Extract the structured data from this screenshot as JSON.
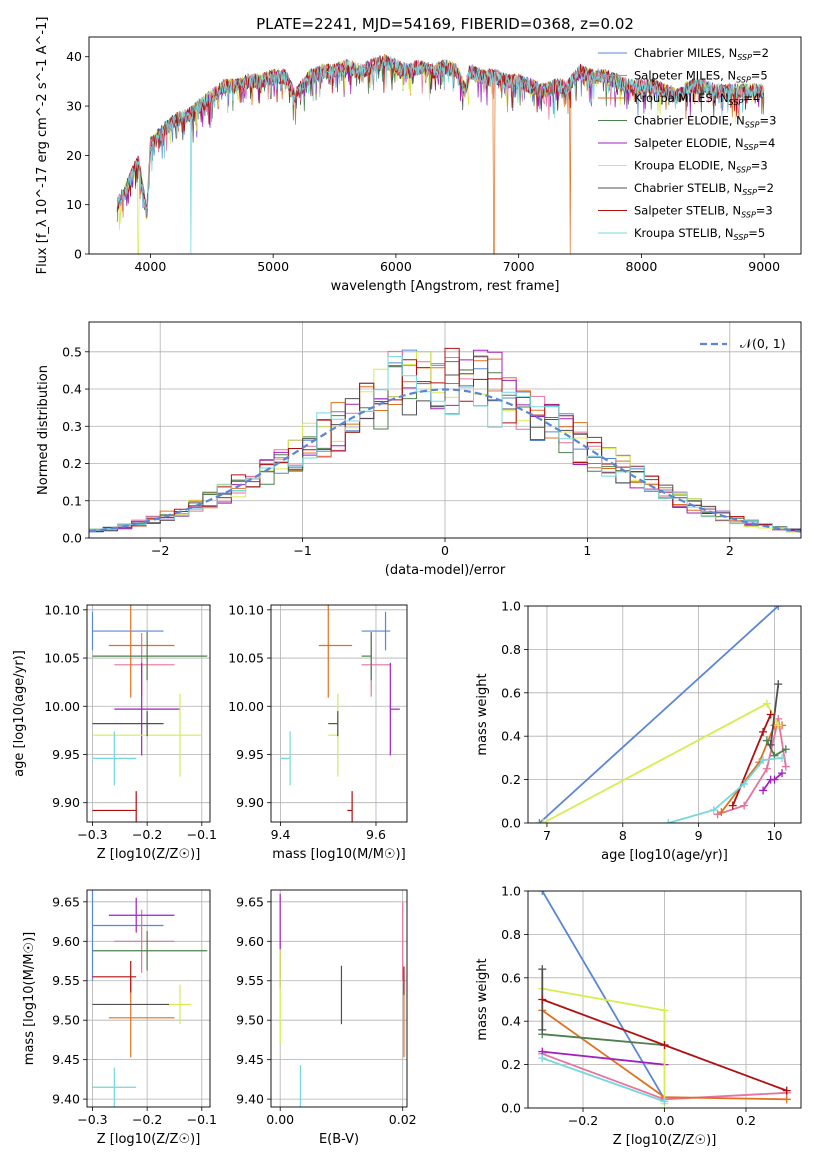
{
  "figure_title": "PLATE=2241, MJD=54169, FIBERID=0368, z=0.02",
  "models": [
    {
      "name": "Chabrier MILES",
      "nssp": "2",
      "color": "#5b86d6"
    },
    {
      "name": "Salpeter MILES",
      "nssp": "5",
      "color": "#e6739f"
    },
    {
      "name": "Kroupa MILES",
      "nssp": "4",
      "color": "#e07020"
    },
    {
      "name": "Chabrier ELODIE",
      "nssp": "3",
      "color": "#4f7f4f"
    },
    {
      "name": "Salpeter ELODIE",
      "nssp": "4",
      "color": "#a020c0"
    },
    {
      "name": "Kroupa ELODIE",
      "nssp": "3",
      "color": "#d8ec50"
    },
    {
      "name": "Chabrier STELIB",
      "nssp": "2",
      "color": "#505050"
    },
    {
      "name": "Salpeter STELIB",
      "nssp": "3",
      "color": "#b01010"
    },
    {
      "name": "Kroupa STELIB",
      "nssp": "5",
      "color": "#74d8dc"
    }
  ],
  "chart_data": [
    {
      "id": "spectrum",
      "type": "line",
      "xlabel": "wavelength [Angstrom, rest frame]",
      "ylabel": "Flux [f_λ 10^-17 erg cm^-2 s^-1 A^-1]",
      "xlim": [
        3500,
        9300
      ],
      "ylim": [
        0,
        44
      ],
      "xticks": [
        4000,
        5000,
        6000,
        7000,
        8000,
        9000
      ],
      "yticks": [
        0,
        10,
        20,
        30,
        40
      ],
      "grid": false,
      "legend": "top-right",
      "x": [
        3730,
        3800,
        3900,
        3970,
        4000,
        4100,
        4200,
        4300,
        4400,
        4500,
        4600,
        4700,
        4800,
        4900,
        5000,
        5100,
        5175,
        5300,
        5400,
        5500,
        5600,
        5700,
        5800,
        5900,
        6000,
        6100,
        6200,
        6300,
        6400,
        6500,
        6563,
        6600,
        6700,
        6800,
        6900,
        7000,
        7100,
        7200,
        7300,
        7400,
        7500,
        7600,
        7700,
        7800,
        7900,
        8000,
        8100,
        8200,
        8300,
        8400,
        8500,
        8600,
        8700,
        8800,
        8900,
        9000
      ],
      "flux": [
        10,
        13,
        19,
        8,
        22,
        25,
        27,
        28,
        30,
        32,
        34,
        34,
        35,
        35,
        36,
        36,
        32,
        36,
        37,
        37,
        38,
        37,
        38,
        39,
        38,
        37,
        38,
        37,
        38,
        37,
        33,
        37,
        36,
        36,
        35,
        35,
        34,
        33,
        34,
        34,
        37,
        36,
        36,
        35,
        34,
        34,
        34,
        33,
        32,
        34,
        34,
        33,
        33,
        33,
        33,
        33
      ],
      "dropouts": [
        {
          "x": 3900,
          "model": "Kroupa ELODIE"
        },
        {
          "x": 4330,
          "model": "Kroupa STELIB"
        },
        {
          "x": 6800,
          "model": "Kroupa MILES"
        },
        {
          "x": 7420,
          "model": "Kroupa MILES"
        }
      ]
    },
    {
      "id": "residuals",
      "type": "histogram",
      "xlabel": "(data-model)/error",
      "ylabel": "Normed distribution",
      "xlim": [
        -2.5,
        2.5
      ],
      "ylim": [
        0,
        0.58
      ],
      "xticks": [
        -2,
        -1,
        0,
        1,
        2
      ],
      "yticks": [
        0.0,
        0.1,
        0.2,
        0.3,
        0.4,
        0.5
      ],
      "grid": true,
      "legend": "top-right",
      "reference_curve": {
        "label": "𝒩(0, 1)",
        "mean": 0,
        "sigma": 1
      },
      "bin_width": 0.1,
      "bin_start": -2.5
    },
    {
      "id": "age_vs_Z",
      "type": "errorbar",
      "xlabel": "Z [log10(Z/Z☉)]",
      "ylabel": "age [log10(age/yr)]",
      "xlim": [
        -0.31,
        -0.085
      ],
      "ylim": [
        9.88,
        10.105
      ],
      "xticks": [
        -0.3,
        -0.2,
        -0.1
      ],
      "yticks": [
        9.9,
        9.95,
        10.0,
        10.05,
        10.1
      ],
      "grid": true,
      "points": [
        {
          "model": "Chabrier MILES",
          "x": -0.3,
          "xerr_low": 0.0,
          "xerr_high": 0.13,
          "y": 10.078,
          "yerr": 0.02
        },
        {
          "model": "Salpeter MILES",
          "x": -0.21,
          "xerr_low": 0.05,
          "xerr_high": 0.06,
          "y": 10.043,
          "yerr": 0.033
        },
        {
          "model": "Kroupa MILES",
          "x": -0.23,
          "xerr_low": 0.04,
          "xerr_high": 0.08,
          "y": 10.063,
          "yerr": 0.054
        },
        {
          "model": "Chabrier ELODIE",
          "x": -0.2,
          "xerr_low": 0.1,
          "xerr_high": 0.11,
          "y": 10.052,
          "yerr": 0.025
        },
        {
          "model": "Salpeter ELODIE",
          "x": -0.21,
          "xerr_low": 0.05,
          "xerr_high": 0.07,
          "y": 9.997,
          "yerr": 0.048
        },
        {
          "model": "Kroupa ELODIE",
          "x": -0.14,
          "xerr_low": 0.16,
          "xerr_high": 0.04,
          "y": 9.97,
          "yerr": 0.043
        },
        {
          "model": "Chabrier STELIB",
          "x": -0.2,
          "xerr_low": 0.1,
          "xerr_high": 0.03,
          "y": 9.982,
          "yerr": 0.013
        },
        {
          "model": "Salpeter STELIB",
          "x": -0.22,
          "xerr_low": 0.08,
          "xerr_high": 0.0,
          "y": 9.892,
          "yerr": 0.02
        },
        {
          "model": "Kroupa STELIB",
          "x": -0.26,
          "xerr_low": 0.04,
          "xerr_high": 0.04,
          "y": 9.946,
          "yerr": 0.028
        }
      ]
    },
    {
      "id": "age_vs_mass",
      "type": "errorbar",
      "xlabel": "mass [log10(M/M☉)]",
      "ylabel": "",
      "xlim": [
        9.38,
        9.665
      ],
      "ylim": [
        9.88,
        10.105
      ],
      "xticks": [
        9.4,
        9.6
      ],
      "yticks": [
        9.9,
        9.95,
        10.0,
        10.05,
        10.1
      ],
      "grid": true,
      "points": [
        {
          "model": "Chabrier MILES",
          "x": 9.62,
          "xerr_low": 0.05,
          "xerr_high": 0.01,
          "y": 10.078,
          "yerr": 0.02
        },
        {
          "model": "Salpeter MILES",
          "x": 9.59,
          "xerr_low": 0.02,
          "xerr_high": 0.04,
          "y": 10.043,
          "yerr": 0.033
        },
        {
          "model": "Kroupa MILES",
          "x": 9.5,
          "xerr_low": 0.02,
          "xerr_high": 0.05,
          "y": 10.063,
          "yerr": 0.054
        },
        {
          "model": "Chabrier ELODIE",
          "x": 9.59,
          "xerr_low": 0.02,
          "xerr_high": 0.0,
          "y": 10.052,
          "yerr": 0.025
        },
        {
          "model": "Salpeter ELODIE",
          "x": 9.63,
          "xerr_low": 0.0,
          "xerr_high": 0.02,
          "y": 9.997,
          "yerr": 0.048
        },
        {
          "model": "Kroupa ELODIE",
          "x": 9.52,
          "xerr_low": 0.02,
          "xerr_high": 0.0,
          "y": 9.97,
          "yerr": 0.043
        },
        {
          "model": "Chabrier STELIB",
          "x": 9.52,
          "xerr_low": 0.02,
          "xerr_high": 0.0,
          "y": 9.982,
          "yerr": 0.013
        },
        {
          "model": "Salpeter STELIB",
          "x": 9.55,
          "xerr_low": 0.01,
          "xerr_high": 0.0,
          "y": 9.892,
          "yerr": 0.02
        },
        {
          "model": "Kroupa STELIB",
          "x": 9.42,
          "xerr_low": 0.02,
          "xerr_high": 0.0,
          "y": 9.946,
          "yerr": 0.028
        }
      ]
    },
    {
      "id": "weight_vs_age",
      "type": "line",
      "xlabel": "age [log10(age/yr)]",
      "ylabel": "mass weight",
      "xlim": [
        6.75,
        10.35
      ],
      "ylim": [
        0.0,
        1.0
      ],
      "xticks": [
        7,
        8,
        9,
        10
      ],
      "yticks": [
        0.0,
        0.2,
        0.4,
        0.6,
        0.8,
        1.0
      ],
      "grid": true,
      "series": [
        {
          "model": "Chabrier MILES",
          "points": [
            [
              6.9,
              0.0
            ],
            [
              10.05,
              1.0
            ]
          ]
        },
        {
          "model": "Salpeter MILES",
          "points": [
            [
              9.25,
              0.04
            ],
            [
              9.6,
              0.08
            ],
            [
              9.9,
              0.25
            ],
            [
              10.05,
              0.48
            ],
            [
              10.15,
              0.26
            ]
          ]
        },
        {
          "model": "Kroupa MILES",
          "points": [
            [
              9.3,
              0.05
            ],
            [
              9.8,
              0.28
            ],
            [
              10.0,
              0.45
            ],
            [
              10.1,
              0.45
            ]
          ]
        },
        {
          "model": "Chabrier ELODIE",
          "points": [
            [
              9.9,
              0.38
            ],
            [
              10.0,
              0.31
            ],
            [
              10.15,
              0.34
            ]
          ]
        },
        {
          "model": "Salpeter ELODIE",
          "points": [
            [
              9.85,
              0.15
            ],
            [
              9.95,
              0.2
            ],
            [
              10.0,
              0.2
            ],
            [
              10.1,
              0.23
            ]
          ]
        },
        {
          "model": "Kroupa ELODIE",
          "points": [
            [
              6.95,
              0.0
            ],
            [
              9.9,
              0.55
            ],
            [
              10.05,
              0.45
            ]
          ]
        },
        {
          "model": "Chabrier STELIB",
          "points": [
            [
              9.95,
              0.36
            ],
            [
              10.05,
              0.64
            ]
          ]
        },
        {
          "model": "Salpeter STELIB",
          "points": [
            [
              9.45,
              0.08
            ],
            [
              9.85,
              0.42
            ],
            [
              9.95,
              0.5
            ]
          ]
        },
        {
          "model": "Kroupa STELIB",
          "points": [
            [
              8.6,
              0.0
            ],
            [
              9.2,
              0.06
            ],
            [
              9.6,
              0.18
            ],
            [
              9.85,
              0.29
            ],
            [
              10.1,
              0.3
            ]
          ]
        }
      ]
    },
    {
      "id": "mass_vs_Z",
      "type": "errorbar",
      "xlabel": "Z [log10(Z/Z☉)]",
      "ylabel": "mass [log10(M/M☉)]",
      "xlim": [
        -0.31,
        -0.085
      ],
      "ylim": [
        9.39,
        9.665
      ],
      "xticks": [
        -0.3,
        -0.2,
        -0.1
      ],
      "yticks": [
        9.4,
        9.45,
        9.5,
        9.55,
        9.6,
        9.65
      ],
      "grid": true,
      "points": [
        {
          "model": "Chabrier MILES",
          "x": -0.3,
          "xerr_low": 0.0,
          "xerr_high": 0.13,
          "y": 9.62,
          "yerr": 0.07
        },
        {
          "model": "Salpeter MILES",
          "x": -0.21,
          "xerr_low": 0.05,
          "xerr_high": 0.06,
          "y": 9.6,
          "yerr": 0.04
        },
        {
          "model": "Kroupa MILES",
          "x": -0.23,
          "xerr_low": 0.04,
          "xerr_high": 0.08,
          "y": 9.503,
          "yerr": 0.05
        },
        {
          "model": "Chabrier ELODIE",
          "x": -0.2,
          "xerr_low": 0.1,
          "xerr_high": 0.11,
          "y": 9.588,
          "yerr": 0.025
        },
        {
          "model": "Salpeter ELODIE",
          "x": -0.22,
          "xerr_low": 0.05,
          "xerr_high": 0.07,
          "y": 9.633,
          "yerr": 0.022
        },
        {
          "model": "Kroupa ELODIE",
          "x": -0.14,
          "xerr_low": 0.03,
          "xerr_high": 0.02,
          "y": 9.52,
          "yerr": 0.025
        },
        {
          "model": "Chabrier STELIB",
          "x": -0.23,
          "xerr_low": 0.07,
          "xerr_high": 0.07,
          "y": 9.52,
          "yerr": 0.0
        },
        {
          "model": "Salpeter STELIB",
          "x": -0.23,
          "xerr_low": 0.07,
          "xerr_high": 0.01,
          "y": 9.555,
          "yerr": 0.02
        },
        {
          "model": "Kroupa STELIB",
          "x": -0.26,
          "xerr_low": 0.04,
          "xerr_high": 0.04,
          "y": 9.415,
          "yerr": 0.025
        }
      ]
    },
    {
      "id": "mass_vs_ebv",
      "type": "errorbar",
      "xlabel": "E(B-V)",
      "ylabel": "",
      "xlim": [
        -0.0015,
        0.0207
      ],
      "ylim": [
        9.39,
        9.665
      ],
      "xticks": [
        0.0,
        0.02
      ],
      "yticks": [
        9.4,
        9.45,
        9.5,
        9.55,
        9.6,
        9.65
      ],
      "grid": true,
      "points": [
        {
          "model": "Salpeter ELODIE",
          "x": 0.0,
          "y": 9.6,
          "yerr": 0.06
        },
        {
          "model": "Kroupa ELODIE",
          "x": 0.0,
          "y": 9.53,
          "yerr": 0.06
        },
        {
          "model": "Chabrier STELIB",
          "x": 0.01,
          "y": 9.532,
          "yerr": 0.037
        },
        {
          "model": "Kroupa STELIB",
          "x": 0.0033,
          "y": 9.415,
          "yerr": 0.028
        },
        {
          "model": "Salpeter MILES",
          "x": 0.02,
          "y": 9.6,
          "yerr": 0.05
        },
        {
          "model": "Kroupa MILES",
          "x": 0.0202,
          "y": 9.503,
          "yerr": 0.05
        },
        {
          "model": "Salpeter STELIB",
          "x": 0.0202,
          "y": 9.55,
          "yerr": 0.018
        }
      ]
    },
    {
      "id": "weight_vs_Z",
      "type": "line",
      "xlabel": "Z [log10(Z/Z☉)]",
      "ylabel": "mass weight",
      "xlim": [
        -0.335,
        0.335
      ],
      "ylim": [
        0.0,
        1.0
      ],
      "xticks": [
        -0.2,
        0.0,
        0.2
      ],
      "yticks": [
        0.0,
        0.2,
        0.4,
        0.6,
        0.8,
        1.0
      ],
      "grid": true,
      "series": [
        {
          "model": "Chabrier MILES",
          "points": [
            [
              -0.3,
              1.0
            ],
            [
              0.0,
              0.04
            ]
          ]
        },
        {
          "model": "Salpeter MILES",
          "points": [
            [
              -0.3,
              0.25
            ],
            [
              0.0,
              0.04
            ],
            [
              0.3,
              0.07
            ]
          ]
        },
        {
          "model": "Kroupa MILES",
          "points": [
            [
              -0.3,
              0.45
            ],
            [
              0.0,
              0.05
            ],
            [
              0.3,
              0.04
            ]
          ]
        },
        {
          "model": "Chabrier ELODIE",
          "points": [
            [
              -0.3,
              0.34
            ],
            [
              0.0,
              0.29
            ]
          ]
        },
        {
          "model": "Salpeter ELODIE",
          "points": [
            [
              -0.3,
              0.26
            ],
            [
              0.0,
              0.2
            ]
          ]
        },
        {
          "model": "Kroupa ELODIE",
          "points": [
            [
              -0.3,
              0.55
            ],
            [
              0.0,
              0.45
            ],
            [
              0.0,
              0.02
            ]
          ]
        },
        {
          "model": "Chabrier STELIB",
          "points": [
            [
              -0.3,
              0.64
            ],
            [
              -0.3,
              0.36
            ]
          ]
        },
        {
          "model": "Salpeter STELIB",
          "points": [
            [
              -0.3,
              0.5
            ],
            [
              0.0,
              0.29
            ],
            [
              0.3,
              0.08
            ]
          ]
        },
        {
          "model": "Kroupa STELIB",
          "points": [
            [
              -0.3,
              0.23
            ],
            [
              0.0,
              0.03
            ]
          ]
        }
      ]
    }
  ]
}
